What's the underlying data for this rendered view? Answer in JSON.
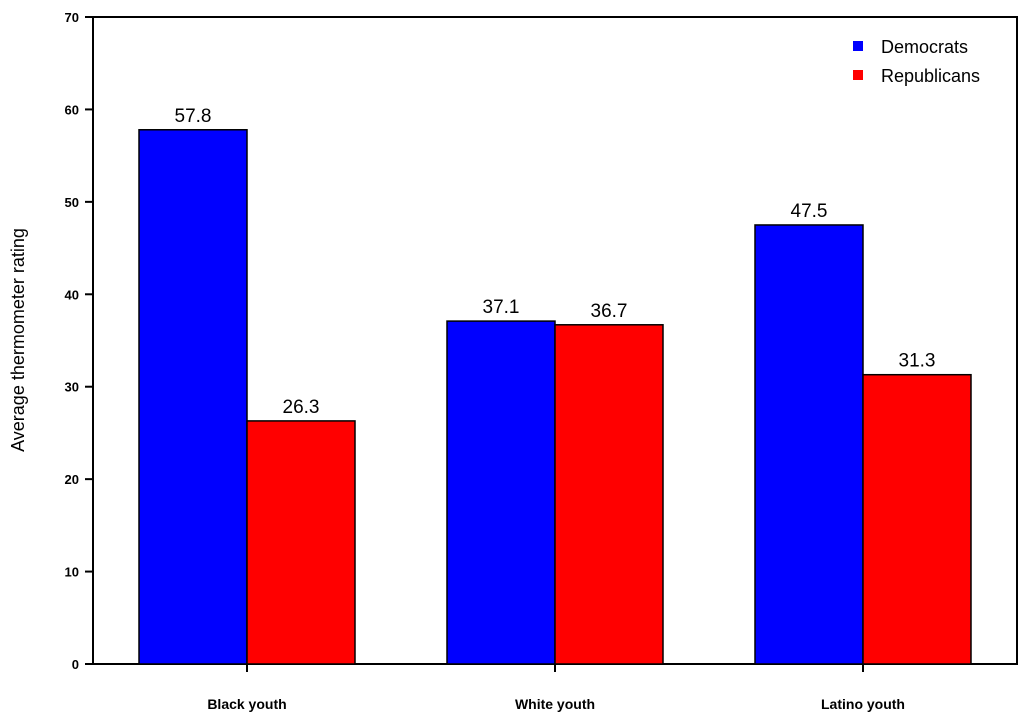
{
  "chart_data": {
    "type": "bar",
    "title": "",
    "xlabel": "",
    "ylabel": "Average thermometer rating",
    "categories": [
      "Black youth",
      "White youth",
      "Latino youth"
    ],
    "series": [
      {
        "name": "Democrats",
        "color": "#0000ff",
        "values": [
          57.8,
          37.1,
          47.5
        ]
      },
      {
        "name": "Republicans",
        "color": "#ff0000",
        "values": [
          26.3,
          36.7,
          31.3
        ]
      }
    ],
    "ylim": [
      0,
      70
    ],
    "yticks": [
      0,
      10,
      20,
      30,
      40,
      50,
      60,
      70
    ],
    "value_labels": [
      [
        "57.8",
        "37.1",
        "47.5"
      ],
      [
        "26.3",
        "36.7",
        "31.3"
      ]
    ],
    "grid": false,
    "legend_position": "top-right"
  }
}
